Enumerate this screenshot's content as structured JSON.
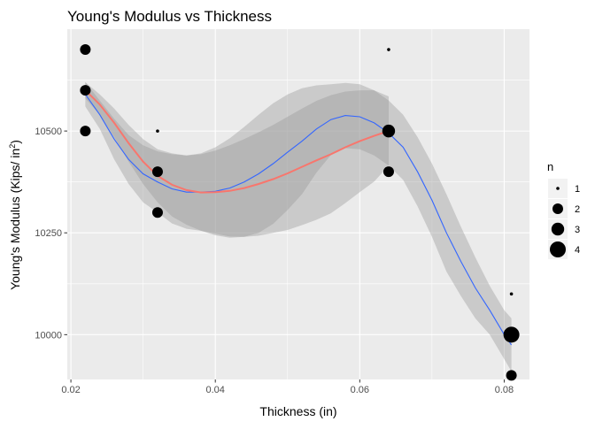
{
  "chart_data": {
    "type": "scatter",
    "title": "Young's Modulus vs Thickness",
    "xlabel": "Thickness (in)",
    "ylabel_main": "Young's Modulus (Kips/ in",
    "ylabel_sup": "2",
    "ylabel_close": ")",
    "xlim": [
      0.0195,
      0.0835
    ],
    "ylim": [
      9890,
      10750
    ],
    "x_ticks": [
      0.02,
      0.04,
      0.06,
      0.08
    ],
    "x_tick_labels": [
      "0.02",
      "0.04",
      "0.06",
      "0.08"
    ],
    "y_ticks": [
      10000,
      10250,
      10500
    ],
    "y_tick_labels": [
      "10000",
      "10250",
      "10500"
    ],
    "grid": true,
    "legend": {
      "title": "n",
      "position": "right",
      "entries": [
        {
          "label": "1",
          "n": 1
        },
        {
          "label": "2",
          "n": 2
        },
        {
          "label": "3",
          "n": 3
        },
        {
          "label": "4",
          "n": 4
        }
      ]
    },
    "points": [
      {
        "x": 0.022,
        "y": 10700,
        "n": 2
      },
      {
        "x": 0.022,
        "y": 10600,
        "n": 2
      },
      {
        "x": 0.022,
        "y": 10500,
        "n": 2
      },
      {
        "x": 0.032,
        "y": 10500,
        "n": 1
      },
      {
        "x": 0.032,
        "y": 10400,
        "n": 2
      },
      {
        "x": 0.032,
        "y": 10300,
        "n": 2
      },
      {
        "x": 0.064,
        "y": 10700,
        "n": 1
      },
      {
        "x": 0.064,
        "y": 10500,
        "n": 3
      },
      {
        "x": 0.064,
        "y": 10400,
        "n": 2
      },
      {
        "x": 0.081,
        "y": 10100,
        "n": 1
      },
      {
        "x": 0.081,
        "y": 10000,
        "n": 4
      },
      {
        "x": 0.081,
        "y": 9900,
        "n": 2
      }
    ],
    "smooth_red": {
      "color": "#F8766D",
      "line": [
        [
          0.022,
          10600
        ],
        [
          0.024,
          10565
        ],
        [
          0.026,
          10520
        ],
        [
          0.028,
          10470
        ],
        [
          0.03,
          10425
        ],
        [
          0.032,
          10390
        ],
        [
          0.034,
          10368
        ],
        [
          0.036,
          10355
        ],
        [
          0.038,
          10349
        ],
        [
          0.04,
          10350
        ],
        [
          0.042,
          10353
        ],
        [
          0.044,
          10360
        ],
        [
          0.046,
          10370
        ],
        [
          0.048,
          10382
        ],
        [
          0.05,
          10396
        ],
        [
          0.052,
          10412
        ],
        [
          0.054,
          10428
        ],
        [
          0.056,
          10443
        ],
        [
          0.058,
          10460
        ],
        [
          0.06,
          10475
        ],
        [
          0.062,
          10488
        ],
        [
          0.064,
          10500
        ]
      ],
      "upper": [
        [
          0.022,
          10620
        ],
        [
          0.024,
          10590
        ],
        [
          0.026,
          10555
        ],
        [
          0.028,
          10515
        ],
        [
          0.03,
          10480
        ],
        [
          0.032,
          10455
        ],
        [
          0.034,
          10445
        ],
        [
          0.036,
          10440
        ],
        [
          0.038,
          10443
        ],
        [
          0.04,
          10452
        ],
        [
          0.042,
          10465
        ],
        [
          0.044,
          10480
        ],
        [
          0.046,
          10497
        ],
        [
          0.048,
          10515
        ],
        [
          0.05,
          10535
        ],
        [
          0.052,
          10555
        ],
        [
          0.054,
          10574
        ],
        [
          0.056,
          10588
        ],
        [
          0.058,
          10597
        ],
        [
          0.06,
          10600
        ],
        [
          0.062,
          10600
        ],
        [
          0.064,
          10585
        ]
      ],
      "lower": [
        [
          0.022,
          10580
        ],
        [
          0.024,
          10540
        ],
        [
          0.026,
          10485
        ],
        [
          0.028,
          10425
        ],
        [
          0.03,
          10370
        ],
        [
          0.032,
          10325
        ],
        [
          0.034,
          10290
        ],
        [
          0.036,
          10270
        ],
        [
          0.038,
          10255
        ],
        [
          0.04,
          10248
        ],
        [
          0.042,
          10241
        ],
        [
          0.044,
          10240
        ],
        [
          0.046,
          10243
        ],
        [
          0.048,
          10250
        ],
        [
          0.05,
          10257
        ],
        [
          0.052,
          10269
        ],
        [
          0.054,
          10282
        ],
        [
          0.056,
          10298
        ],
        [
          0.058,
          10323
        ],
        [
          0.06,
          10350
        ],
        [
          0.062,
          10376
        ],
        [
          0.064,
          10415
        ]
      ]
    },
    "smooth_blue": {
      "color": "#3366FF",
      "line": [
        [
          0.022,
          10590
        ],
        [
          0.024,
          10540
        ],
        [
          0.026,
          10480
        ],
        [
          0.028,
          10430
        ],
        [
          0.03,
          10395
        ],
        [
          0.032,
          10375
        ],
        [
          0.034,
          10358
        ],
        [
          0.036,
          10350
        ],
        [
          0.038,
          10350
        ],
        [
          0.04,
          10352
        ],
        [
          0.042,
          10360
        ],
        [
          0.044,
          10375
        ],
        [
          0.046,
          10395
        ],
        [
          0.048,
          10420
        ],
        [
          0.05,
          10448
        ],
        [
          0.052,
          10475
        ],
        [
          0.054,
          10505
        ],
        [
          0.056,
          10528
        ],
        [
          0.058,
          10538
        ],
        [
          0.06,
          10535
        ],
        [
          0.062,
          10520
        ],
        [
          0.064,
          10495
        ],
        [
          0.066,
          10460
        ],
        [
          0.068,
          10400
        ],
        [
          0.07,
          10330
        ],
        [
          0.072,
          10250
        ],
        [
          0.074,
          10180
        ],
        [
          0.076,
          10115
        ],
        [
          0.078,
          10060
        ],
        [
          0.08,
          10000
        ],
        [
          0.081,
          9975
        ]
      ],
      "upper": [
        [
          0.022,
          10620
        ],
        [
          0.024,
          10575
        ],
        [
          0.026,
          10530
        ],
        [
          0.028,
          10490
        ],
        [
          0.03,
          10465
        ],
        [
          0.032,
          10450
        ],
        [
          0.034,
          10443
        ],
        [
          0.036,
          10440
        ],
        [
          0.038,
          10445
        ],
        [
          0.04,
          10460
        ],
        [
          0.042,
          10482
        ],
        [
          0.044,
          10510
        ],
        [
          0.046,
          10540
        ],
        [
          0.048,
          10568
        ],
        [
          0.05,
          10590
        ],
        [
          0.052,
          10605
        ],
        [
          0.054,
          10612
        ],
        [
          0.056,
          10615
        ],
        [
          0.058,
          10618
        ],
        [
          0.06,
          10615
        ],
        [
          0.062,
          10600
        ],
        [
          0.064,
          10575
        ],
        [
          0.066,
          10540
        ],
        [
          0.068,
          10485
        ],
        [
          0.07,
          10420
        ],
        [
          0.072,
          10345
        ],
        [
          0.074,
          10265
        ],
        [
          0.076,
          10190
        ],
        [
          0.078,
          10120
        ],
        [
          0.08,
          10060
        ],
        [
          0.081,
          10040
        ]
      ],
      "lower": [
        [
          0.022,
          10560
        ],
        [
          0.024,
          10505
        ],
        [
          0.026,
          10430
        ],
        [
          0.028,
          10370
        ],
        [
          0.03,
          10325
        ],
        [
          0.032,
          10300
        ],
        [
          0.034,
          10273
        ],
        [
          0.036,
          10260
        ],
        [
          0.038,
          10255
        ],
        [
          0.04,
          10244
        ],
        [
          0.042,
          10238
        ],
        [
          0.044,
          10240
        ],
        [
          0.046,
          10250
        ],
        [
          0.048,
          10272
        ],
        [
          0.05,
          10306
        ],
        [
          0.052,
          10345
        ],
        [
          0.054,
          10398
        ],
        [
          0.056,
          10441
        ],
        [
          0.058,
          10458
        ],
        [
          0.06,
          10455
        ],
        [
          0.062,
          10440
        ],
        [
          0.064,
          10415
        ],
        [
          0.066,
          10380
        ],
        [
          0.068,
          10315
        ],
        [
          0.07,
          10240
        ],
        [
          0.072,
          10155
        ],
        [
          0.074,
          10095
        ],
        [
          0.076,
          10040
        ],
        [
          0.078,
          10000
        ],
        [
          0.08,
          9940
        ],
        [
          0.081,
          9910
        ]
      ]
    }
  }
}
